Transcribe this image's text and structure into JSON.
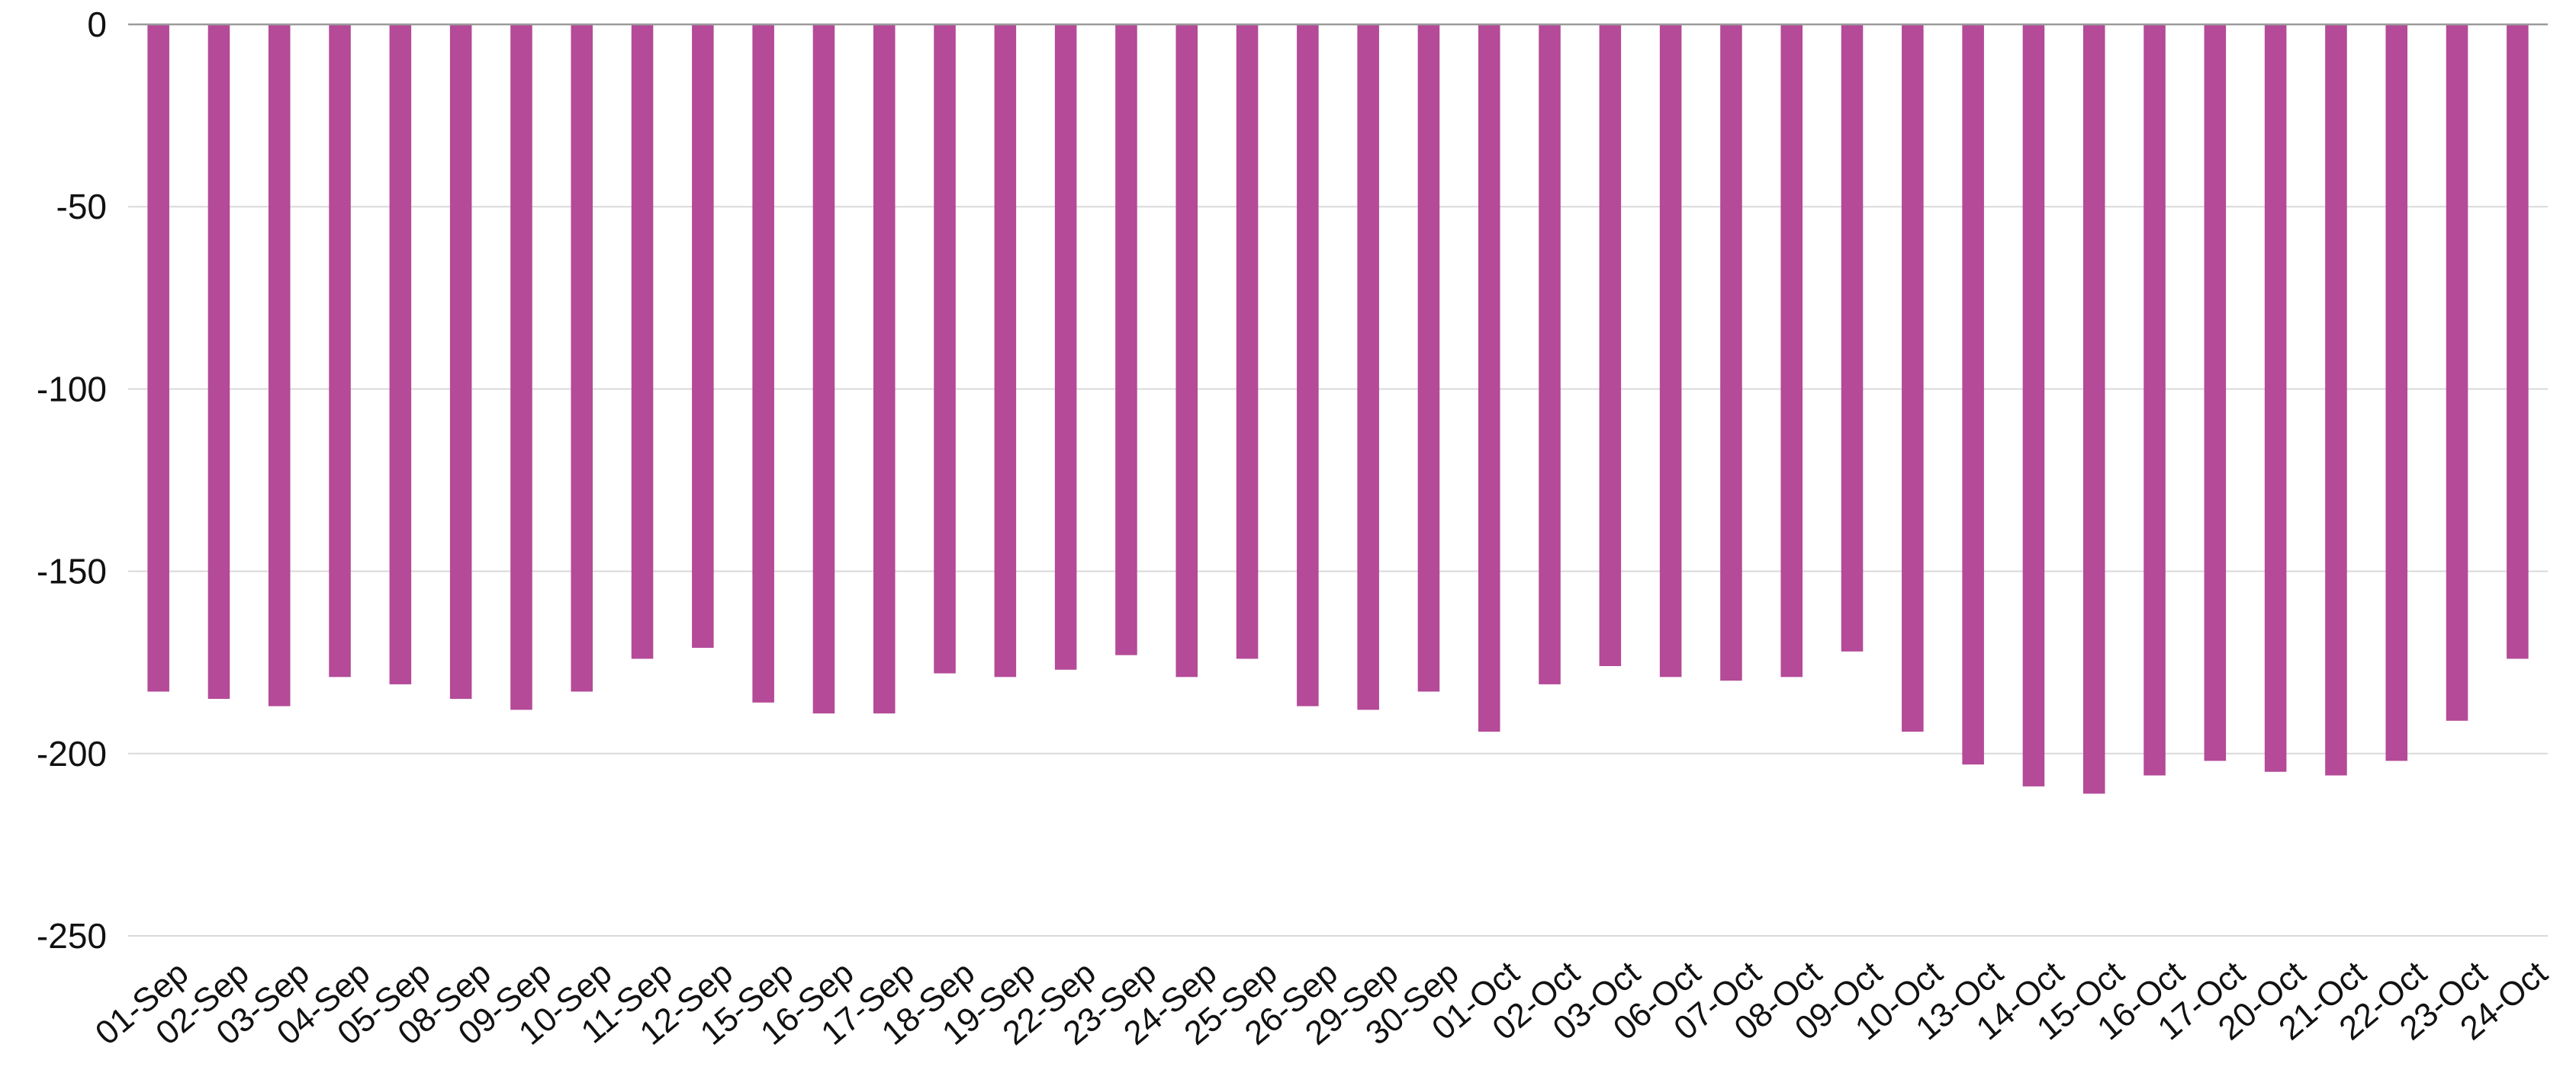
{
  "chart_data": {
    "type": "bar",
    "title": "",
    "xlabel": "",
    "ylabel": "",
    "ylim": [
      -250,
      0
    ],
    "yticks": [
      0,
      -50,
      -100,
      -150,
      -200,
      -250
    ],
    "grid": true,
    "legend": "none",
    "bar_color": "#b44a98",
    "gridline_color": "#d9d9d9",
    "categories": [
      "01-Sep",
      "02-Sep",
      "03-Sep",
      "04-Sep",
      "05-Sep",
      "08-Sep",
      "09-Sep",
      "10-Sep",
      "11-Sep",
      "12-Sep",
      "15-Sep",
      "16-Sep",
      "17-Sep",
      "18-Sep",
      "19-Sep",
      "22-Sep",
      "23-Sep",
      "24-Sep",
      "25-Sep",
      "26-Sep",
      "29-Sep",
      "30-Sep",
      "01-Oct",
      "02-Oct",
      "03-Oct",
      "06-Oct",
      "07-Oct",
      "08-Oct",
      "09-Oct",
      "10-Oct",
      "13-Oct",
      "14-Oct",
      "15-Oct",
      "16-Oct",
      "17-Oct",
      "20-Oct",
      "21-Oct",
      "22-Oct",
      "23-Oct",
      "24-Oct"
    ],
    "values": [
      -183,
      -185,
      -187,
      -179,
      -181,
      -185,
      -188,
      -183,
      -174,
      -171,
      -186,
      -189,
      -189,
      -178,
      -179,
      -177,
      -173,
      -179,
      -174,
      -187,
      -188,
      -183,
      -194,
      -181,
      -176,
      -179,
      -180,
      -179,
      -172,
      -194,
      -203,
      -209,
      -211,
      -206,
      -202,
      -205,
      -206,
      -202,
      -191,
      -174
    ]
  }
}
